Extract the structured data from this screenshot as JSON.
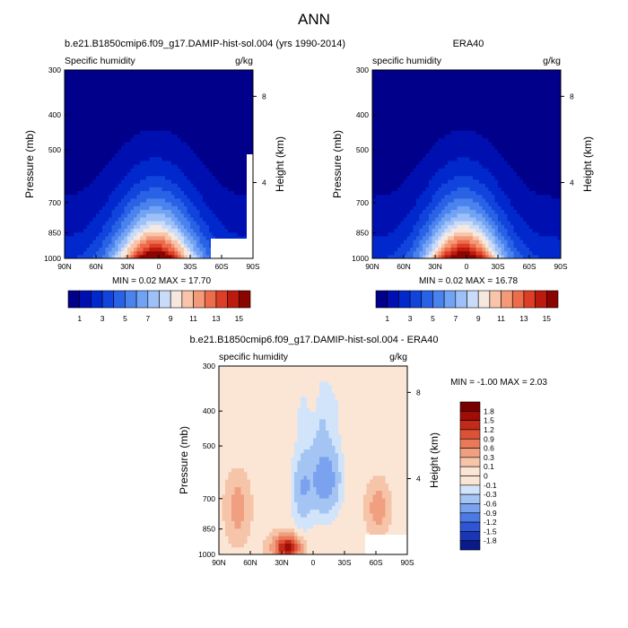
{
  "figure": {
    "title": "ANN"
  },
  "chart_data": [
    {
      "type": "heatmap",
      "title": "b.e21.B1850cmip6.f09_g17.DAMIP-hist-sol.004 (yrs 1990-2014)",
      "left_label": "Specific humidity",
      "right_label": "g/kg",
      "ylabel": "Pressure (mb)",
      "y2label": "Height (km)",
      "x_ticks": [
        "90N",
        "60N",
        "30N",
        "0",
        "30S",
        "60S",
        "90S"
      ],
      "y_ticks": [
        "300",
        "400",
        "500",
        "700",
        "850",
        "1000"
      ],
      "y2_ticks": [
        "8",
        "4"
      ],
      "xlim": [
        90,
        -90
      ],
      "ylim": [
        1000,
        300
      ],
      "stats": "MIN =  0.02  MAX = 17.70",
      "stat_min": 0.02,
      "stat_max": 17.7,
      "levels": [
        1,
        2,
        3,
        4,
        5,
        6,
        7,
        8,
        9,
        10,
        11,
        12,
        13,
        14,
        15
      ],
      "colorbar_labels": [
        "1",
        "3",
        "5",
        "7",
        "9",
        "11",
        "13",
        "15"
      ],
      "colors": [
        "#00008a",
        "#0010b0",
        "#0028cc",
        "#1044dc",
        "#2a62e6",
        "#4a82ee",
        "#72a2f4",
        "#9ec0f8",
        "#c8dcfa",
        "#f6e8de",
        "#f8c4aa",
        "#f49a78",
        "#ec6c4c",
        "#dc3e26",
        "#bc1a0e",
        "#8a0400"
      ]
    },
    {
      "type": "heatmap",
      "title": "ERA40",
      "left_label": "specific humidity",
      "right_label": "g/kg",
      "ylabel": "Pressure (mb)",
      "y2label": "Height (km)",
      "x_ticks": [
        "90N",
        "60N",
        "30N",
        "0",
        "30S",
        "60S",
        "90S"
      ],
      "y_ticks": [
        "300",
        "400",
        "500",
        "700",
        "850",
        "1000"
      ],
      "y2_ticks": [
        "8",
        "4"
      ],
      "xlim": [
        90,
        -90
      ],
      "ylim": [
        1000,
        300
      ],
      "stats": "MIN =  0.02  MAX = 16.78",
      "stat_min": 0.02,
      "stat_max": 16.78,
      "levels": [
        1,
        2,
        3,
        4,
        5,
        6,
        7,
        8,
        9,
        10,
        11,
        12,
        13,
        14,
        15
      ],
      "colorbar_labels": [
        "1",
        "3",
        "5",
        "7",
        "9",
        "11",
        "13",
        "15"
      ],
      "colors": [
        "#00008a",
        "#0010b0",
        "#0028cc",
        "#1044dc",
        "#2a62e6",
        "#4a82ee",
        "#72a2f4",
        "#9ec0f8",
        "#c8dcfa",
        "#f6e8de",
        "#f8c4aa",
        "#f49a78",
        "#ec6c4c",
        "#dc3e26",
        "#bc1a0e",
        "#8a0400"
      ]
    },
    {
      "type": "heatmap",
      "title": "b.e21.B1850cmip6.f09_g17.DAMIP-hist-sol.004 - ERA40",
      "left_label": "specific humidity",
      "right_label": "g/kg",
      "ylabel": "Pressure (mb)",
      "y2label": "Height (km)",
      "x_ticks": [
        "90N",
        "60N",
        "30N",
        "0",
        "30S",
        "60S",
        "90S"
      ],
      "y_ticks": [
        "300",
        "400",
        "500",
        "700",
        "850",
        "1000"
      ],
      "y2_ticks": [
        "8",
        "4"
      ],
      "xlim": [
        90,
        -90
      ],
      "ylim": [
        1000,
        300
      ],
      "stats": "MIN = -1.00  MAX =  2.03",
      "stat_min": -1.0,
      "stat_max": 2.03,
      "levels": [
        -1.8,
        -1.5,
        -1.2,
        -0.9,
        -0.6,
        -0.3,
        -0.1,
        0,
        0.1,
        0.3,
        0.6,
        0.9,
        1.2,
        1.5,
        1.8
      ],
      "colorbar_labels": [
        "1.8",
        "1.5",
        "1.2",
        "0.9",
        "0.6",
        "0.3",
        "0.1",
        "0",
        "-0.1",
        "-0.3",
        "-0.6",
        "-0.9",
        "-1.2",
        "-1.5",
        "-1.8"
      ],
      "colors": [
        "#0a1a8a",
        "#1a36b4",
        "#2e56d4",
        "#4c7ae4",
        "#7aa2ee",
        "#a4c4f4",
        "#d2e4fa",
        "#fbe6d6",
        "#fbe6d6",
        "#f6c4a8",
        "#f0a080",
        "#e87a5a",
        "#dc5236",
        "#c42a18",
        "#a00c06",
        "#780000"
      ]
    }
  ]
}
